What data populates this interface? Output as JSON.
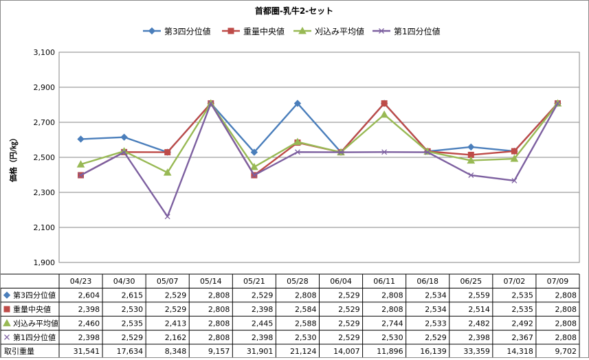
{
  "chart_data": {
    "type": "line",
    "title": "首都圏-乳牛2-セット",
    "ylabel": "価格（円/㎏）",
    "ylim": [
      1900,
      3100
    ],
    "yticks": [
      "1,900",
      "2,100",
      "2,300",
      "2,500",
      "2,700",
      "2,900",
      "3,100"
    ],
    "grid": true,
    "legend": "top",
    "categories": [
      "04/23",
      "04/30",
      "05/07",
      "05/14",
      "05/21",
      "05/28",
      "06/04",
      "06/11",
      "06/18",
      "06/25",
      "07/02",
      "07/09"
    ],
    "series": [
      {
        "name": "第3四分位値",
        "marker": "diamond",
        "color": "#4A7EBB",
        "values": [
          2604,
          2615,
          2529,
          2808,
          2529,
          2808,
          2529,
          2808,
          2534,
          2559,
          2535,
          2808
        ],
        "labels": [
          "2,604",
          "2,615",
          "2,529",
          "2,808",
          "2,529",
          "2,808",
          "2,529",
          "2,808",
          "2,534",
          "2,559",
          "2,535",
          "2,808"
        ]
      },
      {
        "name": "重量中央値",
        "marker": "square",
        "color": "#BE4B48",
        "values": [
          2398,
          2530,
          2529,
          2808,
          2398,
          2584,
          2529,
          2808,
          2534,
          2514,
          2535,
          2808
        ],
        "labels": [
          "2,398",
          "2,530",
          "2,529",
          "2,808",
          "2,398",
          "2,584",
          "2,529",
          "2,808",
          "2,534",
          "2,514",
          "2,535",
          "2,808"
        ]
      },
      {
        "name": "刈込み平均値",
        "marker": "triangle",
        "color": "#98B954",
        "values": [
          2460,
          2535,
          2413,
          2808,
          2445,
          2588,
          2529,
          2744,
          2533,
          2482,
          2492,
          2808
        ],
        "labels": [
          "2,460",
          "2,535",
          "2,413",
          "2,808",
          "2,445",
          "2,588",
          "2,529",
          "2,744",
          "2,533",
          "2,482",
          "2,492",
          "2,808"
        ]
      },
      {
        "name": "第1四分位値",
        "marker": "x",
        "color": "#7D60A0",
        "values": [
          2398,
          2529,
          2162,
          2808,
          2398,
          2530,
          2529,
          2530,
          2529,
          2398,
          2367,
          2808
        ],
        "labels": [
          "2,398",
          "2,529",
          "2,162",
          "2,808",
          "2,398",
          "2,530",
          "2,529",
          "2,530",
          "2,529",
          "2,398",
          "2,367",
          "2,808"
        ]
      }
    ],
    "table_extra": {
      "name": "取引重量",
      "labels": [
        "31,541",
        "17,634",
        "8,348",
        "9,157",
        "31,901",
        "21,124",
        "14,007",
        "11,896",
        "16,139",
        "33,359",
        "14,318",
        "9,702"
      ]
    }
  }
}
